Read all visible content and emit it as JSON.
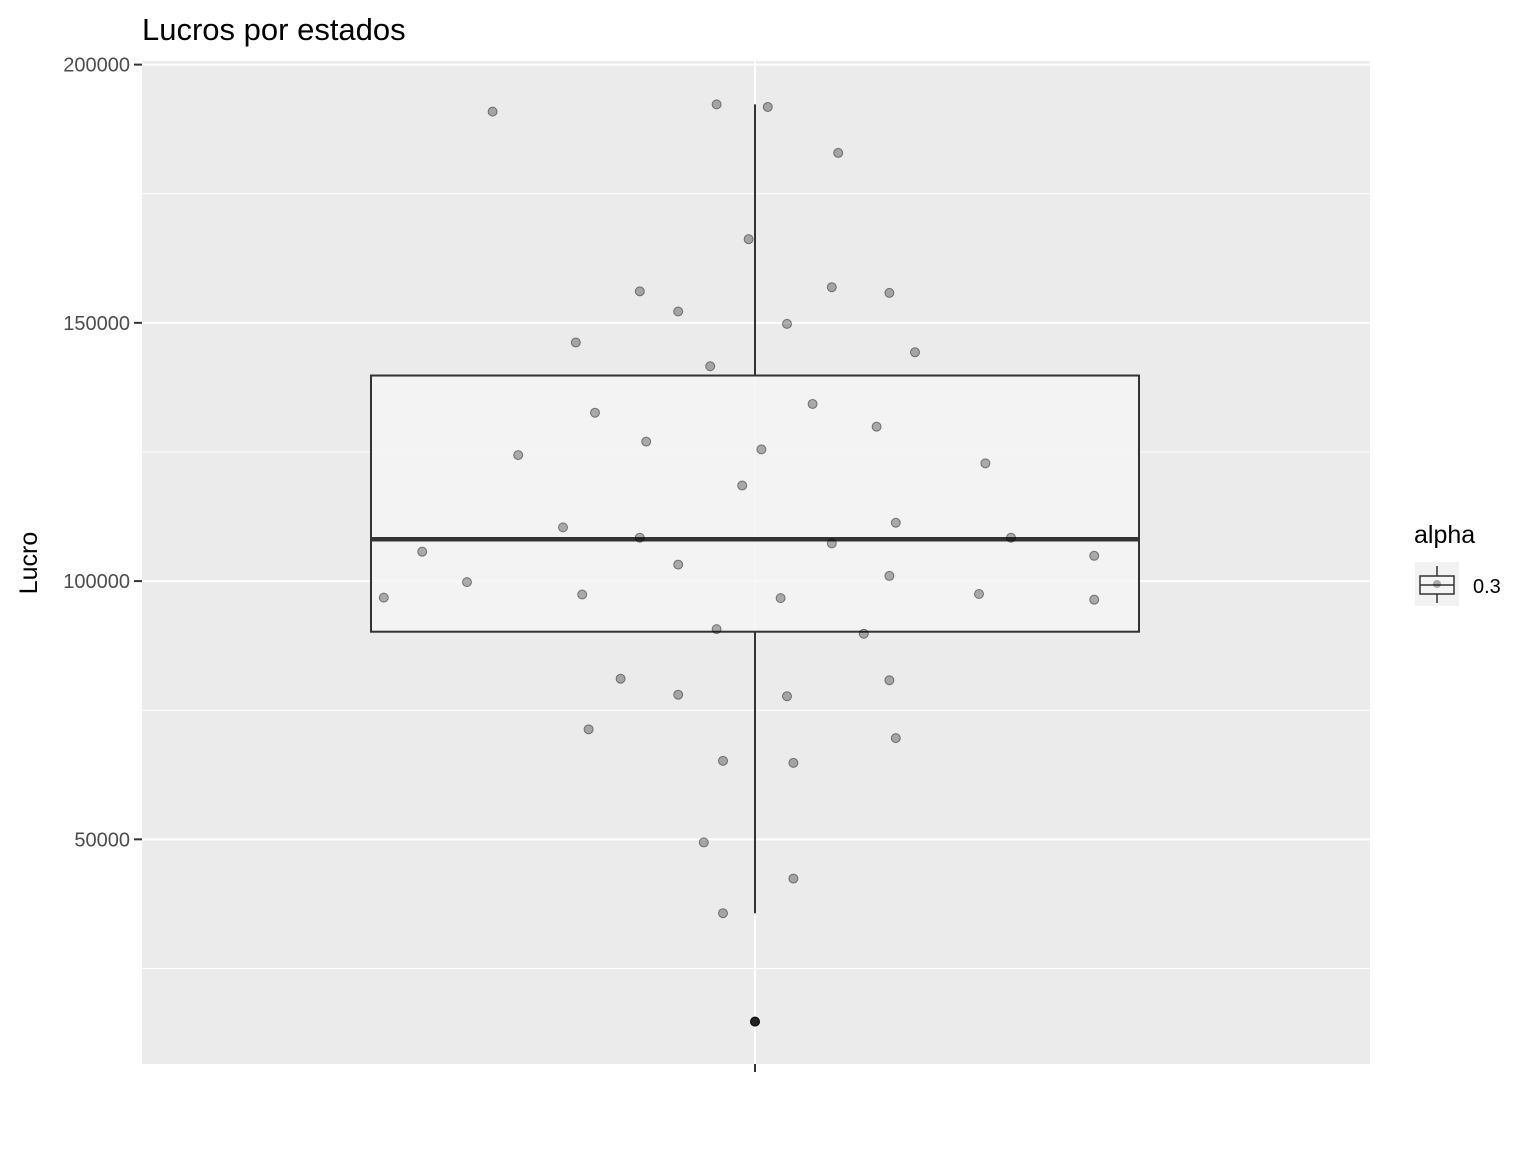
{
  "chart_data": {
    "type": "box",
    "title": "Lucros por estados",
    "xlabel": "",
    "ylabel": "Lucro",
    "ylim": [
      6500,
      200700
    ],
    "y_ticks": [
      50000,
      100000,
      150000,
      200000
    ],
    "y_tick_labels": [
      "50000",
      "100000",
      "150000",
      "200000"
    ],
    "grid": true,
    "background": "#ebebeb",
    "box": {
      "whisker_low": 35700,
      "q1": 90200,
      "median": 108100,
      "q3": 139800,
      "whisker_high": 192300,
      "fill": "#f5f5f5",
      "outlier": 14700
    },
    "points": [
      {
        "x": -0.41,
        "y": 190900
      },
      {
        "x": -0.06,
        "y": 192300
      },
      {
        "x": 0.02,
        "y": 191800
      },
      {
        "x": 0.13,
        "y": 182900
      },
      {
        "x": -0.01,
        "y": 166200
      },
      {
        "x": -0.18,
        "y": 156100
      },
      {
        "x": 0.12,
        "y": 156900
      },
      {
        "x": 0.21,
        "y": 155800
      },
      {
        "x": -0.12,
        "y": 152200
      },
      {
        "x": 0.05,
        "y": 149800
      },
      {
        "x": -0.28,
        "y": 146200
      },
      {
        "x": 0.25,
        "y": 144300
      },
      {
        "x": -0.07,
        "y": 141600
      },
      {
        "x": -0.25,
        "y": 132600
      },
      {
        "x": 0.09,
        "y": 134300
      },
      {
        "x": 0.19,
        "y": 129900
      },
      {
        "x": -0.17,
        "y": 127000
      },
      {
        "x": -0.37,
        "y": 124400
      },
      {
        "x": 0.01,
        "y": 125500
      },
      {
        "x": 0.36,
        "y": 122800
      },
      {
        "x": -0.02,
        "y": 118500
      },
      {
        "x": -0.3,
        "y": 110400
      },
      {
        "x": 0.22,
        "y": 111300
      },
      {
        "x": -0.18,
        "y": 108400
      },
      {
        "x": 0.12,
        "y": 107300
      },
      {
        "x": 0.4,
        "y": 108400
      },
      {
        "x": -0.52,
        "y": 105700
      },
      {
        "x": 0.53,
        "y": 104900
      },
      {
        "x": -0.45,
        "y": 99800
      },
      {
        "x": -0.12,
        "y": 103200
      },
      {
        "x": 0.21,
        "y": 101000
      },
      {
        "x": -0.58,
        "y": 96800
      },
      {
        "x": -0.27,
        "y": 97400
      },
      {
        "x": 0.04,
        "y": 96700
      },
      {
        "x": 0.35,
        "y": 97500
      },
      {
        "x": 0.53,
        "y": 96400
      },
      {
        "x": -0.06,
        "y": 90700
      },
      {
        "x": 0.17,
        "y": 89800
      },
      {
        "x": -0.21,
        "y": 81100
      },
      {
        "x": 0.21,
        "y": 80800
      },
      {
        "x": -0.12,
        "y": 78000
      },
      {
        "x": 0.05,
        "y": 77700
      },
      {
        "x": -0.26,
        "y": 71300
      },
      {
        "x": 0.22,
        "y": 69600
      },
      {
        "x": -0.05,
        "y": 65200
      },
      {
        "x": 0.06,
        "y": 64800
      },
      {
        "x": -0.08,
        "y": 49400
      },
      {
        "x": 0.06,
        "y": 42400
      },
      {
        "x": -0.05,
        "y": 35700
      },
      {
        "x": 0.0,
        "y": 14700
      }
    ],
    "legend": {
      "title": "alpha",
      "entries": [
        "0.3"
      ],
      "placement": "right"
    }
  }
}
